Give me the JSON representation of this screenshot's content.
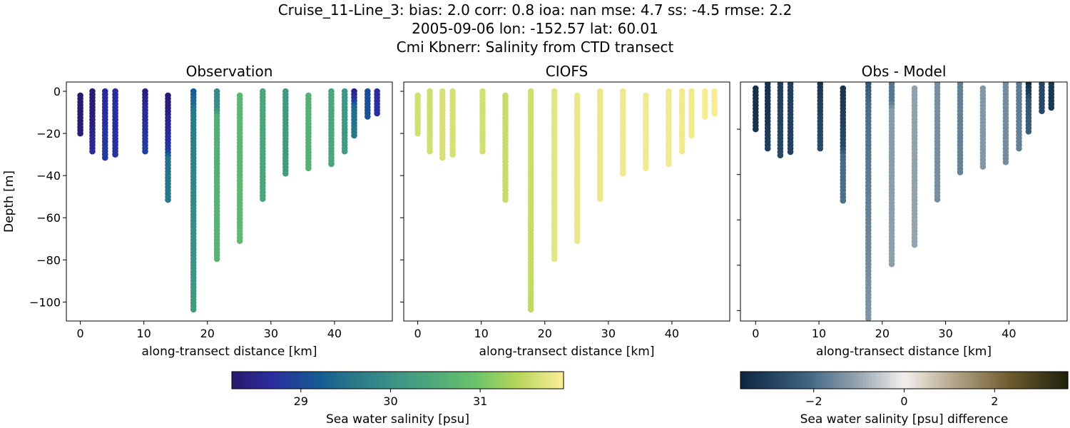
{
  "title_lines": [
    "Cruise_11-Line_3: bias: 2.0  corr: 0.8  ioa: nan  mse: 4.7  ss: -4.5  rmse: 2.2",
    "2005-09-06 lon: -152.57 lat: 60.01",
    "Cmi Kbnerr: Salinity from CTD transect"
  ],
  "chart_data": [
    {
      "type": "scatter",
      "title": "Observation",
      "xlabel": "along-transect distance [km]",
      "ylabel": "Depth [m]",
      "xlim": [
        -2.2,
        49.1
      ],
      "ylim": [
        -109,
        4.4
      ],
      "xticks": [
        0,
        10,
        20,
        30,
        40
      ],
      "yticks": [
        0,
        -20,
        -40,
        -60,
        -80,
        -100
      ],
      "ytick_labels": [
        "0",
        "−20",
        "−40",
        "−60",
        "−80",
        "−100"
      ],
      "variable": "obs",
      "colormap": "haline",
      "grid": false
    },
    {
      "type": "scatter",
      "title": "CIOFS",
      "xlabel": "along-transect distance [km]",
      "xlim": [
        -2.2,
        49.1
      ],
      "ylim": [
        -109,
        4.4
      ],
      "xticks": [
        0,
        10,
        20,
        30,
        40
      ],
      "yticks": [
        0,
        -20,
        -40,
        -60,
        -80,
        -100
      ],
      "variable": "model",
      "colormap": "haline",
      "grid": false
    },
    {
      "type": "scatter",
      "title": "Obs - Model",
      "xlabel": "along-transect distance [km]",
      "xlim": [
        -2.4,
        49.2
      ],
      "ylim": [
        -104.6,
        0.8
      ],
      "xticks": [
        0,
        10,
        20,
        30,
        40
      ],
      "yticks": [
        -20,
        -40,
        -60,
        -80,
        -100
      ],
      "variable": "diff",
      "colormap": "diff",
      "grid": false
    }
  ],
  "stations": [
    {
      "x": 0.0,
      "top": -2,
      "bottom": -20.7,
      "obs": [
        [
          0,
          28.25
        ],
        [
          -21,
          28.3
        ]
      ],
      "model": [
        [
          0,
          31.6
        ],
        [
          -21,
          31.62
        ]
      ]
    },
    {
      "x": 1.9,
      "top": 0,
      "bottom": -29.8,
      "obs": [
        [
          0,
          28.3
        ],
        [
          -12,
          28.35
        ],
        [
          -30,
          28.65
        ]
      ],
      "model": [
        [
          0,
          31.6
        ],
        [
          -30,
          31.62
        ]
      ]
    },
    {
      "x": 3.9,
      "top": 0,
      "bottom": -32.6,
      "obs": [
        [
          0,
          28.6
        ],
        [
          -33,
          28.85
        ]
      ],
      "model": [
        [
          0,
          31.65
        ],
        [
          -33,
          31.65
        ]
      ]
    },
    {
      "x": 5.5,
      "top": 0,
      "bottom": -30.6,
      "obs": [
        [
          0,
          28.65
        ],
        [
          -31,
          28.7
        ]
      ],
      "model": [
        [
          0,
          31.65
        ],
        [
          -31,
          31.65
        ]
      ]
    },
    {
      "x": 10.2,
      "top": 0,
      "bottom": -29.8,
      "obs": [
        [
          0,
          28.35
        ],
        [
          -8,
          28.6
        ],
        [
          -30,
          28.9
        ]
      ],
      "model": [
        [
          0,
          31.62
        ],
        [
          -30,
          31.62
        ]
      ]
    },
    {
      "x": 13.8,
      "top": -2,
      "bottom": -51.5,
      "obs": [
        [
          0,
          28.25
        ],
        [
          -10,
          28.4
        ],
        [
          -28,
          28.8
        ],
        [
          -32,
          29.5
        ],
        [
          -52,
          29.6
        ]
      ],
      "model": [
        [
          0,
          31.55
        ],
        [
          -52,
          31.55
        ]
      ]
    },
    {
      "x": 17.8,
      "top": 0,
      "bottom": -103.7,
      "obs": [
        [
          0,
          29.2
        ],
        [
          -10,
          29.6
        ],
        [
          -104,
          30.2
        ]
      ],
      "model": [
        [
          0,
          31.6
        ],
        [
          -104,
          31.5
        ]
      ]
    },
    {
      "x": 21.5,
      "top": 0,
      "bottom": -80.9,
      "obs": [
        [
          0,
          29.9
        ],
        [
          -8,
          29.95
        ],
        [
          -12,
          30.55
        ],
        [
          -81,
          30.65
        ]
      ],
      "model": [
        [
          0,
          31.75
        ],
        [
          -81,
          31.75
        ]
      ]
    },
    {
      "x": 25.1,
      "top": -2,
      "bottom": -72.1,
      "obs": [
        [
          0,
          30.7
        ],
        [
          -72,
          30.75
        ]
      ],
      "model": [
        [
          0,
          31.8
        ],
        [
          -72,
          31.8
        ]
      ]
    },
    {
      "x": 28.7,
      "top": 0,
      "bottom": -51.5,
      "obs": [
        [
          0,
          30.4
        ],
        [
          -52,
          30.4
        ]
      ],
      "model": [
        [
          0,
          31.8
        ],
        [
          -52,
          31.8
        ]
      ]
    },
    {
      "x": 32.3,
      "top": 0,
      "bottom": -39.7,
      "obs": [
        [
          0,
          30.15
        ],
        [
          -40,
          30.2
        ]
      ],
      "model": [
        [
          0,
          31.82
        ],
        [
          -40,
          31.82
        ]
      ]
    },
    {
      "x": 35.9,
      "top": -2,
      "bottom": -37.7,
      "obs": [
        [
          0,
          30.6
        ],
        [
          -38,
          30.6
        ]
      ],
      "model": [
        [
          0,
          31.85
        ],
        [
          -38,
          31.85
        ]
      ]
    },
    {
      "x": 39.5,
      "top": 0,
      "bottom": -34.8,
      "obs": [
        [
          0,
          30.4
        ],
        [
          -35,
          30.4
        ]
      ],
      "model": [
        [
          0,
          31.85
        ],
        [
          -35,
          31.85
        ]
      ]
    },
    {
      "x": 41.6,
      "top": 0,
      "bottom": -28.7,
      "obs": [
        [
          0,
          30.1
        ],
        [
          -29,
          30.2
        ]
      ],
      "model": [
        [
          0,
          31.85
        ],
        [
          -29,
          31.85
        ]
      ]
    },
    {
      "x": 43.1,
      "top": 0,
      "bottom": -21.8,
      "obs": [
        [
          0,
          28.4
        ],
        [
          -4,
          28.8
        ],
        [
          -8,
          29.4
        ],
        [
          -22,
          29.6
        ]
      ],
      "model": [
        [
          0,
          31.85
        ],
        [
          -22,
          31.85
        ]
      ]
    },
    {
      "x": 45.2,
      "top": 0,
      "bottom": -12.9,
      "obs": [
        [
          0,
          29.05
        ],
        [
          -13,
          29.1
        ]
      ],
      "model": [
        [
          0,
          31.88
        ],
        [
          -13,
          31.88
        ]
      ]
    },
    {
      "x": 46.7,
      "top": 0,
      "bottom": -10.8,
      "obs": [
        [
          0,
          28.65
        ],
        [
          -11,
          28.7
        ]
      ],
      "model": [
        [
          0,
          31.88
        ],
        [
          -11,
          31.88
        ]
      ]
    }
  ],
  "colorbars": [
    {
      "label": "Sea water salinity [psu]",
      "range": [
        28.23,
        31.93
      ],
      "ticks": [
        29,
        30,
        31
      ],
      "tick_labels": [
        "29",
        "30",
        "31"
      ],
      "colormap": "haline"
    },
    {
      "label": "Sea water salinity [psu] difference",
      "range": [
        -3.62,
        3.62
      ],
      "ticks": [
        -2,
        0,
        2
      ],
      "tick_labels": [
        "−2",
        "0",
        "2"
      ],
      "colormap": "diff"
    }
  ],
  "colormaps": {
    "haline": [
      [
        0,
        "#2a186c"
      ],
      [
        0.12,
        "#2b2d9e"
      ],
      [
        0.26,
        "#155a93"
      ],
      [
        0.36,
        "#27778a"
      ],
      [
        0.48,
        "#3b9186"
      ],
      [
        0.61,
        "#4faa7b"
      ],
      [
        0.74,
        "#6cc56a"
      ],
      [
        0.86,
        "#b5d65a"
      ],
      [
        1,
        "#fdee99"
      ]
    ],
    "diff": [
      [
        0,
        "#0d2540"
      ],
      [
        0.2,
        "#3d6380"
      ],
      [
        0.35,
        "#90a1ae"
      ],
      [
        0.5,
        "#f3f0ee"
      ],
      [
        0.65,
        "#b5a78b"
      ],
      [
        0.82,
        "#6f5c2e"
      ],
      [
        1,
        "#1e200c"
      ]
    ]
  }
}
